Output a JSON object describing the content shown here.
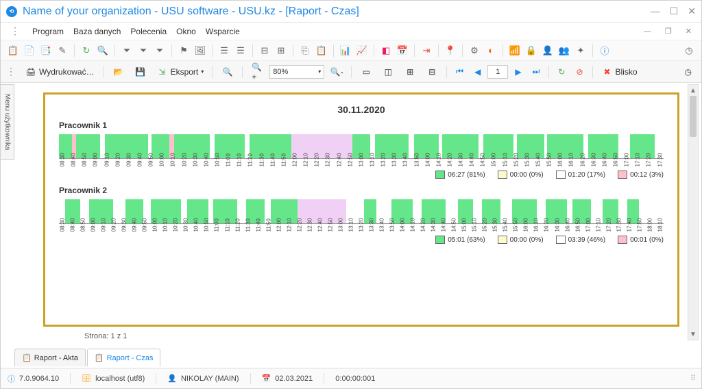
{
  "titlebar": {
    "title": "Name of your organization - USU software - USU.kz - [Raport - Czas]"
  },
  "menu": {
    "items": [
      "Program",
      "Baza danych",
      "Polecenia",
      "Okno",
      "Wsparcie"
    ]
  },
  "toolbar2": {
    "print": "Wydrukować…",
    "export": "Eksport",
    "zoom": "80%",
    "page": "1",
    "close": "Blisko"
  },
  "sideTab": "Menu użytkownika",
  "report": {
    "date": "30.11.2020",
    "pager": "Strona: 1 z 1",
    "employees": [
      {
        "name": "Pracownik 1",
        "ticks": [
          "08:30",
          "08:40",
          "08:50",
          "09:00",
          "09:10",
          "09:20",
          "09:30",
          "09:40",
          "09:50",
          "10:00",
          "10:10",
          "10:20",
          "10:30",
          "10:40",
          "10:50",
          "11:00",
          "11:10",
          "11:20",
          "11:30",
          "11:40",
          "11:50",
          "12:00",
          "12:10",
          "12:20",
          "12:30",
          "12:40",
          "12:50",
          "13:00",
          "13:10",
          "13:20",
          "13:30",
          "13:40",
          "13:50",
          "14:00",
          "14:10",
          "14:20",
          "14:30",
          "14:40",
          "14:50",
          "15:00",
          "15:10",
          "15:20",
          "15:30",
          "15:40",
          "15:50",
          "16:00",
          "16:10",
          "16:20",
          "16:30",
          "16:40",
          "16:50",
          "17:00",
          "17:10",
          "17:20",
          "17:30"
        ],
        "segments": [
          {
            "c": "g",
            "w": 2.2
          },
          {
            "c": "r",
            "w": 0.6
          },
          {
            "c": "g",
            "w": 4.0
          },
          {
            "c": "w",
            "w": 0.8
          },
          {
            "c": "g",
            "w": 7.2
          },
          {
            "c": "w",
            "w": 0.5
          },
          {
            "c": "g",
            "w": 3.0
          },
          {
            "c": "r",
            "w": 0.7
          },
          {
            "c": "g",
            "w": 6.0
          },
          {
            "c": "w",
            "w": 0.7
          },
          {
            "c": "g",
            "w": 5.0
          },
          {
            "c": "w",
            "w": 0.8
          },
          {
            "c": "g",
            "w": 7.0
          },
          {
            "c": "p",
            "w": 10.0
          },
          {
            "c": "g",
            "w": 3.0
          },
          {
            "c": "w",
            "w": 0.8
          },
          {
            "c": "g",
            "w": 5.5
          },
          {
            "c": "w",
            "w": 1.0
          },
          {
            "c": "g",
            "w": 4.0
          },
          {
            "c": "w",
            "w": 0.6
          },
          {
            "c": "g",
            "w": 6.0
          },
          {
            "c": "w",
            "w": 0.8
          },
          {
            "c": "g",
            "w": 5.0
          },
          {
            "c": "w",
            "w": 0.6
          },
          {
            "c": "g",
            "w": 4.5
          },
          {
            "c": "w",
            "w": 0.5
          },
          {
            "c": "g",
            "w": 6.0
          },
          {
            "c": "w",
            "w": 0.7
          },
          {
            "c": "g",
            "w": 5.0
          },
          {
            "c": "w",
            "w": 2.0
          },
          {
            "c": "g",
            "w": 4.0
          },
          {
            "c": "w",
            "w": 1.5
          }
        ],
        "legend": [
          {
            "color": "#66e68a",
            "label": "06:27 (81%)"
          },
          {
            "color": "#fffacd",
            "label": "00:00 (0%)"
          },
          {
            "color": "#ffffff",
            "label": "01:20 (17%)"
          },
          {
            "color": "#ffc0cb",
            "label": "00:12 (3%)"
          }
        ]
      },
      {
        "name": "Pracownik 2",
        "ticks": [
          "08:30",
          "08:40",
          "08:50",
          "09:00",
          "09:10",
          "09:20",
          "09:30",
          "09:40",
          "09:50",
          "10:00",
          "10:10",
          "10:20",
          "10:30",
          "10:40",
          "10:50",
          "11:00",
          "11:10",
          "11:20",
          "11:30",
          "11:40",
          "11:50",
          "12:00",
          "12:10",
          "12:20",
          "12:30",
          "12:40",
          "12:50",
          "13:00",
          "13:10",
          "13:20",
          "13:30",
          "13:40",
          "13:50",
          "14:00",
          "14:10",
          "14:20",
          "14:30",
          "14:40",
          "14:50",
          "15:00",
          "15:10",
          "15:20",
          "15:30",
          "15:40",
          "15:50",
          "16:00",
          "16:10",
          "16:20",
          "16:30",
          "16:40",
          "16:50",
          "17:00",
          "17:10",
          "17:20",
          "17:30",
          "17:40",
          "17:50",
          "18:00",
          "18:10"
        ],
        "segments": [
          {
            "c": "w",
            "w": 1.0
          },
          {
            "c": "g",
            "w": 2.5
          },
          {
            "c": "w",
            "w": 1.5
          },
          {
            "c": "g",
            "w": 4.0
          },
          {
            "c": "w",
            "w": 2.0
          },
          {
            "c": "g",
            "w": 3.0
          },
          {
            "c": "w",
            "w": 1.2
          },
          {
            "c": "g",
            "w": 5.0
          },
          {
            "c": "w",
            "w": 1.0
          },
          {
            "c": "g",
            "w": 3.5
          },
          {
            "c": "w",
            "w": 0.8
          },
          {
            "c": "g",
            "w": 4.0
          },
          {
            "c": "w",
            "w": 1.5
          },
          {
            "c": "g",
            "w": 3.0
          },
          {
            "c": "w",
            "w": 1.0
          },
          {
            "c": "g",
            "w": 4.5
          },
          {
            "c": "p",
            "w": 8.0
          },
          {
            "c": "w",
            "w": 3.0
          },
          {
            "c": "g",
            "w": 2.0
          },
          {
            "c": "w",
            "w": 2.5
          },
          {
            "c": "g",
            "w": 3.5
          },
          {
            "c": "w",
            "w": 1.5
          },
          {
            "c": "g",
            "w": 4.0
          },
          {
            "c": "w",
            "w": 2.0
          },
          {
            "c": "g",
            "w": 2.5
          },
          {
            "c": "w",
            "w": 1.5
          },
          {
            "c": "g",
            "w": 3.0
          },
          {
            "c": "w",
            "w": 2.0
          },
          {
            "c": "g",
            "w": 4.0
          },
          {
            "c": "w",
            "w": 1.5
          },
          {
            "c": "g",
            "w": 3.5
          },
          {
            "c": "w",
            "w": 1.0
          },
          {
            "c": "g",
            "w": 3.0
          },
          {
            "c": "w",
            "w": 2.0
          },
          {
            "c": "g",
            "w": 2.5
          },
          {
            "c": "w",
            "w": 1.5
          },
          {
            "c": "g",
            "w": 2.0
          },
          {
            "c": "w",
            "w": 1.5
          }
        ],
        "legend": [
          {
            "color": "#66e68a",
            "label": "05:01 (63%)"
          },
          {
            "color": "#fffacd",
            "label": "00:00 (0%)"
          },
          {
            "color": "#ffffff",
            "label": "03:39 (46%)"
          },
          {
            "color": "#ffc0cb",
            "label": "00:01 (0%)"
          }
        ]
      }
    ]
  },
  "tabs": [
    {
      "label": "Raport - Akta",
      "active": false
    },
    {
      "label": "Raport - Czas",
      "active": true
    }
  ],
  "status": {
    "version": "7.0.9064.10",
    "server": "localhost (utf8)",
    "user": "NIKOLAY (MAIN)",
    "date": "02.03.2021",
    "timer": "0:00:00:001"
  }
}
